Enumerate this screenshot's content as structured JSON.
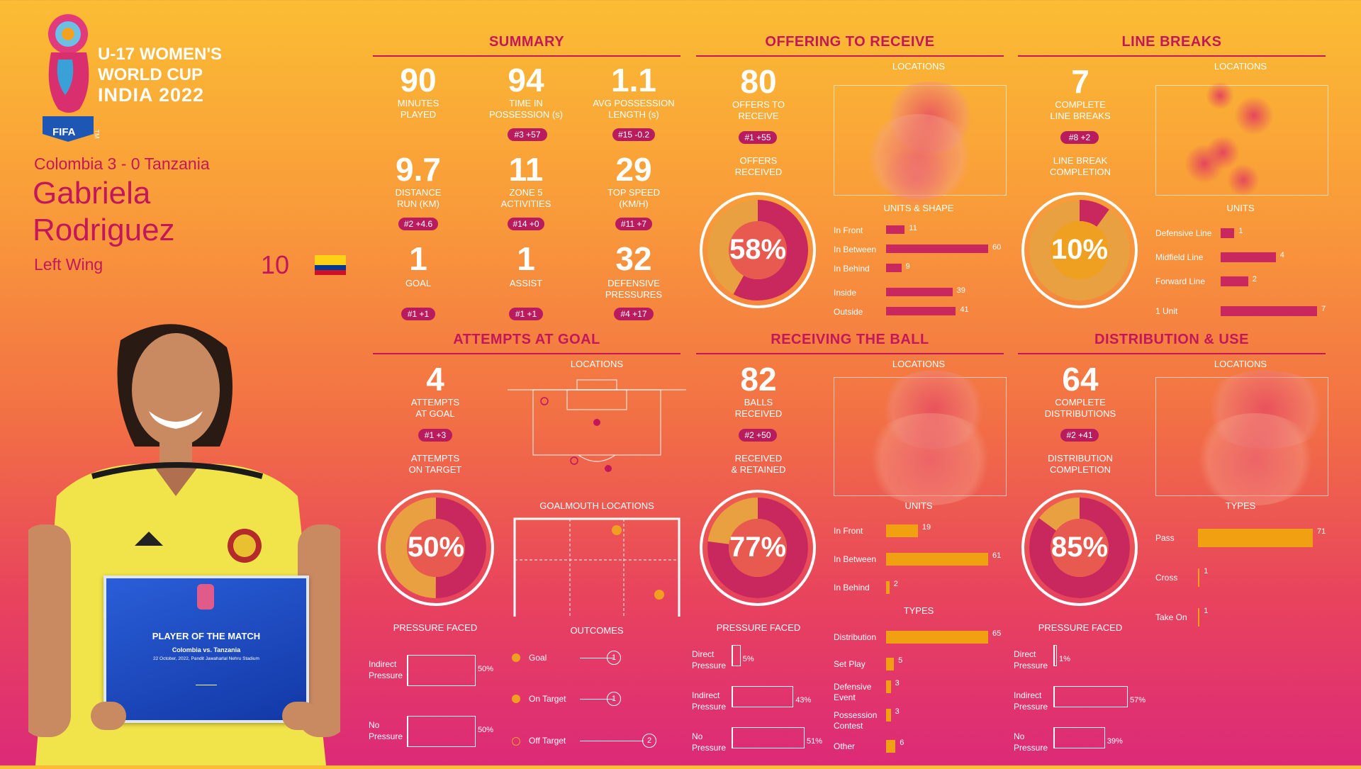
{
  "logo": {
    "fifa": "FIFA",
    "tm": "TM",
    "line1": "U-17 WOMEN'S",
    "line2": "WORLD CUP",
    "line3": "INDIA 2022"
  },
  "match": "Colombia 3 - 0 Tanzania",
  "player": {
    "first": "Gabriela",
    "last": "Rodriguez",
    "position": "Left Wing",
    "number": "10"
  },
  "plaque": {
    "title": "PLAYER OF THE MATCH",
    "teams": "Colombia vs. Tanzania",
    "date": "22 October, 2022, Pandit Jawaharlal Nehru Stadium"
  },
  "summary": {
    "title": "SUMMARY",
    "stats": [
      {
        "value": "90",
        "label1": "MINUTES",
        "label2": "PLAYED",
        "rank": ""
      },
      {
        "value": "94",
        "label1": "TIME IN",
        "label2": "POSSESSION (s)",
        "rank": "#3 +57"
      },
      {
        "value": "1.1",
        "label1": "AVG POSSESSION",
        "label2": "LENGTH (s)",
        "rank": "#15 -0.2"
      },
      {
        "value": "9.7",
        "label1": "DISTANCE",
        "label2": "RUN (KM)",
        "rank": "#2 +4.6"
      },
      {
        "value": "11",
        "label1": "ZONE 5",
        "label2": "ACTIVITIES",
        "rank": "#14 +0"
      },
      {
        "value": "29",
        "label1": "TOP SPEED",
        "label2": "(KM/H)",
        "rank": "#11 +7"
      },
      {
        "value": "1",
        "label1": "GOAL",
        "label2": "",
        "rank": "#1 +1"
      },
      {
        "value": "1",
        "label1": "ASSIST",
        "label2": "",
        "rank": "#1 +1"
      },
      {
        "value": "32",
        "label1": "DEFENSIVE",
        "label2": "PRESSURES",
        "rank": "#4 +17"
      }
    ]
  },
  "offering": {
    "title": "OFFERING TO RECEIVE",
    "value": "80",
    "label1": "OFFERS TO",
    "label2": "RECEIVE",
    "rank": "#1 +55",
    "sub1": "OFFERS",
    "sub2": "RECEIVED",
    "pct": "58%",
    "pct_value": 58,
    "locations": "LOCATIONS",
    "units_title": "UNITS & SHAPE",
    "bars": [
      {
        "label": "In Front",
        "value": 11
      },
      {
        "label": "In Between",
        "value": 60
      },
      {
        "label": "In Behind",
        "value": 9
      },
      {
        "label": "Inside",
        "value": 39
      },
      {
        "label": "Outside",
        "value": 41
      }
    ]
  },
  "linebreaks": {
    "title": "LINE BREAKS",
    "value": "7",
    "label1": "COMPLETE",
    "label2": "LINE BREAKS",
    "rank": "#8 +2",
    "sub1": "LINE BREAK",
    "sub2": "COMPLETION",
    "pct": "10%",
    "pct_value": 10,
    "locations": "LOCATIONS",
    "units_title": "UNITS",
    "bars": [
      {
        "label": "Defensive Line",
        "value": 1
      },
      {
        "label": "Midfield Line",
        "value": 4
      },
      {
        "label": "Forward Line",
        "value": 2
      },
      {
        "label": "1 Unit",
        "value": 7
      }
    ]
  },
  "attempts": {
    "title": "ATTEMPTS AT GOAL",
    "value": "4",
    "label1": "ATTEMPTS",
    "label2": "AT GOAL",
    "rank": "#1 +3",
    "sub1": "ATTEMPTS",
    "sub2": "ON TARGET",
    "pct": "50%",
    "pct_value": 50,
    "locations": "LOCATIONS",
    "goalmouth": "GOALMOUTH LOCATIONS",
    "pressure_title": "PRESSURE FACED",
    "pressure": [
      {
        "label1": "Indirect",
        "label2": "Pressure",
        "pct": "50%",
        "value": 50
      },
      {
        "label1": "No",
        "label2": "Pressure",
        "pct": "50%",
        "value": 50
      }
    ],
    "outcomes_title": "OUTCOMES",
    "outcomes": [
      {
        "label": "Goal",
        "value": "1"
      },
      {
        "label": "On Target",
        "value": "1"
      },
      {
        "label": "Off Target",
        "value": "2"
      }
    ]
  },
  "receiving": {
    "title": "RECEIVING THE BALL",
    "value": "82",
    "label1": "BALLS",
    "label2": "RECEIVED",
    "rank": "#2 +50",
    "sub1": "RECEIVED",
    "sub2": "& RETAINED",
    "pct": "77%",
    "pct_value": 77,
    "locations": "LOCATIONS",
    "units_title": "UNITS",
    "units": [
      {
        "label": "In Front",
        "value": 19
      },
      {
        "label": "In Between",
        "value": 61
      },
      {
        "label": "In Behind",
        "value": 2
      }
    ],
    "types_title": "TYPES",
    "types": [
      {
        "label1": "Distribution",
        "label2": "",
        "value": 65
      },
      {
        "label1": "Set Play",
        "label2": "",
        "value": 5
      },
      {
        "label1": "Defensive",
        "label2": "Event",
        "value": 3
      },
      {
        "label1": "Possession",
        "label2": "Contest",
        "value": 3
      },
      {
        "label1": "Other",
        "label2": "",
        "value": 6
      }
    ],
    "pressure_title": "PRESSURE FACED",
    "pressure": [
      {
        "label1": "Direct",
        "label2": "Pressure",
        "pct": "5%",
        "value": 5
      },
      {
        "label1": "Indirect",
        "label2": "Pressure",
        "pct": "43%",
        "value": 43
      },
      {
        "label1": "No",
        "label2": "Pressure",
        "pct": "51%",
        "value": 51
      }
    ]
  },
  "distribution": {
    "title": "DISTRIBUTION & USE",
    "value": "64",
    "label1": "COMPLETE",
    "label2": "DISTRIBUTIONS",
    "rank": "#2 +41",
    "sub1": "DISTRIBUTION",
    "sub2": "COMPLETION",
    "pct": "85%",
    "pct_value": 85,
    "locations": "LOCATIONS",
    "types_title": "TYPES",
    "types": [
      {
        "label": "Pass",
        "value": 71
      },
      {
        "label": "Cross",
        "value": 1
      },
      {
        "label": "Take On",
        "value": 1
      }
    ],
    "pressure_title": "PRESSURE FACED",
    "pressure": [
      {
        "label1": "Direct",
        "label2": "Pressure",
        "pct": "1%",
        "value": 1
      },
      {
        "label1": "Indirect",
        "label2": "Pressure",
        "pct": "57%",
        "value": 57
      },
      {
        "label1": "No",
        "label2": "Pressure",
        "pct": "39%",
        "value": 39
      }
    ]
  },
  "colors": {
    "accent": "#c2185b",
    "orange": "#f0a010",
    "donut_dark": "#c9285f",
    "donut_light": "#e8a040"
  }
}
